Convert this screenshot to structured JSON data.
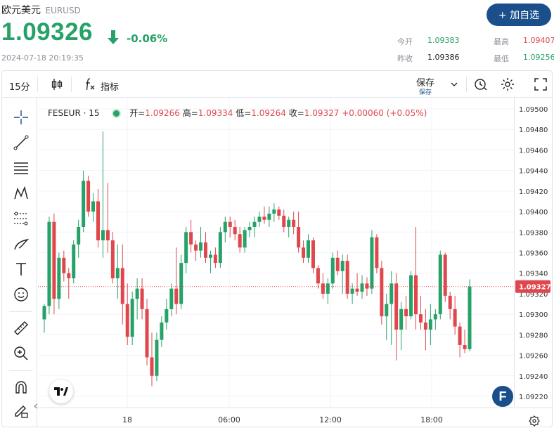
{
  "header": {
    "name": "欧元美元",
    "symbol": "EURUSD",
    "price": "1.09326",
    "change": "-0.06%",
    "timestamp": "2024-07-18 20:19:35",
    "add_button": "+ 加自选"
  },
  "quote": {
    "open_label": "今开",
    "open": "1.09383",
    "high_label": "最高",
    "high": "1.09407",
    "prev_label": "昨收",
    "prev": "1.09386",
    "low_label": "最低",
    "low": "1.09256"
  },
  "toolbar": {
    "interval": "15分",
    "indicators": "指标",
    "save": "保存",
    "save_sub": "保存"
  },
  "legend": {
    "symbol": "FESEUR · 15",
    "open_label": "开=",
    "open": "1.09266",
    "high_label": "高=",
    "high": "1.09334",
    "low_label": "低=",
    "low": "1.09264",
    "close_label": "收=",
    "close": "1.09327",
    "change": "+0.00060 (+0.05%)"
  },
  "colors": {
    "up": "#26a269",
    "down": "#e0474c",
    "accent": "#1a4f8b"
  },
  "left_tools": [
    "crosshair-icon",
    "trend-line-icon",
    "horizontal-lines-icon",
    "pattern-icon",
    "fib-icon",
    "brush-icon",
    "text-icon",
    "emoji-icon",
    "ruler-icon",
    "zoom-in-icon",
    "magnet-icon",
    "lock-pencil-icon"
  ],
  "chart_data": {
    "type": "candlestick",
    "ylim": [
      1.09212,
      1.0951
    ],
    "yticks": [
      "1.09500",
      "1.09480",
      "1.09460",
      "1.09440",
      "1.09420",
      "1.09400",
      "1.09380",
      "1.09360",
      "1.09340",
      "1.09320",
      "1.09300",
      "1.09280",
      "1.09260",
      "1.09240",
      "1.09220"
    ],
    "xticks": [
      "18",
      "06:00",
      "12:00",
      "18:00"
    ],
    "last_price": "1.09327",
    "candles": [
      [
        1.09295,
        1.0931,
        1.09282,
        1.09308
      ],
      [
        1.09308,
        1.09395,
        1.093,
        1.0939
      ],
      [
        1.0939,
        1.09398,
        1.093,
        1.09315
      ],
      [
        1.09315,
        1.0936,
        1.09305,
        1.09355
      ],
      [
        1.09355,
        1.09362,
        1.09332,
        1.0934
      ],
      [
        1.0934,
        1.09345,
        1.09315,
        1.09335
      ],
      [
        1.09335,
        1.09372,
        1.0933,
        1.09368
      ],
      [
        1.09368,
        1.09392,
        1.09355,
        1.09385
      ],
      [
        1.09385,
        1.0944,
        1.0938,
        1.0943
      ],
      [
        1.0943,
        1.09435,
        1.09395,
        1.094
      ],
      [
        1.094,
        1.09418,
        1.0939,
        1.0941
      ],
      [
        1.0941,
        1.09422,
        1.09365,
        1.09372
      ],
      [
        1.09372,
        1.09478,
        1.09355,
        1.09382
      ],
      [
        1.09382,
        1.09428,
        1.0936,
        1.09372
      ],
      [
        1.09372,
        1.0938,
        1.0933,
        1.09335
      ],
      [
        1.09335,
        1.09368,
        1.09315,
        1.09345
      ],
      [
        1.09345,
        1.09368,
        1.0929,
        1.0931
      ],
      [
        1.0931,
        1.0933,
        1.0927,
        1.09278
      ],
      [
        1.09278,
        1.09322,
        1.0927,
        1.09315
      ],
      [
        1.09315,
        1.09335,
        1.09295,
        1.09325
      ],
      [
        1.09325,
        1.09335,
        1.09295,
        1.09305
      ],
      [
        1.09305,
        1.09315,
        1.0925,
        1.09258
      ],
      [
        1.09258,
        1.09282,
        1.0923,
        1.0924
      ],
      [
        1.0924,
        1.09282,
        1.09235,
        1.09275
      ],
      [
        1.09275,
        1.09298,
        1.09268,
        1.09292
      ],
      [
        1.09292,
        1.09315,
        1.09285,
        1.09305
      ],
      [
        1.09305,
        1.0933,
        1.09298,
        1.09325
      ],
      [
        1.09325,
        1.09365,
        1.093,
        1.0931
      ],
      [
        1.0931,
        1.09358,
        1.09305,
        1.0935
      ],
      [
        1.0935,
        1.09385,
        1.0934,
        1.0938
      ],
      [
        1.0938,
        1.09392,
        1.0936,
        1.09368
      ],
      [
        1.09368,
        1.09372,
        1.09352,
        1.09362
      ],
      [
        1.09362,
        1.09385,
        1.09355,
        1.0937
      ],
      [
        1.0937,
        1.0938,
        1.0935,
        1.09355
      ],
      [
        1.09355,
        1.09362,
        1.0934,
        1.09358
      ],
      [
        1.09358,
        1.09365,
        1.09345,
        1.0935
      ],
      [
        1.0935,
        1.09385,
        1.09345,
        1.0938
      ],
      [
        1.0938,
        1.09395,
        1.0937,
        1.0939
      ],
      [
        1.0939,
        1.09395,
        1.09375,
        1.09385
      ],
      [
        1.09385,
        1.09392,
        1.09372,
        1.09378
      ],
      [
        1.09378,
        1.09385,
        1.0936,
        1.09365
      ],
      [
        1.09365,
        1.09385,
        1.0936,
        1.09382
      ],
      [
        1.09382,
        1.0939,
        1.09375,
        1.09385
      ],
      [
        1.09385,
        1.09395,
        1.09375,
        1.0939
      ],
      [
        1.0939,
        1.094,
        1.09385,
        1.09395
      ],
      [
        1.09395,
        1.09405,
        1.09388,
        1.09392
      ],
      [
        1.09392,
        1.09405,
        1.09385,
        1.09398
      ],
      [
        1.09398,
        1.09408,
        1.0939,
        1.09402
      ],
      [
        1.09402,
        1.09405,
        1.09392,
        1.09396
      ],
      [
        1.09396,
        1.09402,
        1.0938,
        1.09385
      ],
      [
        1.09385,
        1.09395,
        1.09375,
        1.09392
      ],
      [
        1.09392,
        1.094,
        1.09378,
        1.09385
      ],
      [
        1.09385,
        1.094,
        1.0936,
        1.09365
      ],
      [
        1.09365,
        1.09372,
        1.0935,
        1.09355
      ],
      [
        1.09355,
        1.09378,
        1.0935,
        1.09372
      ],
      [
        1.09372,
        1.09375,
        1.0934,
        1.09345
      ],
      [
        1.09345,
        1.09348,
        1.09325,
        1.0933
      ],
      [
        1.0933,
        1.0934,
        1.09315,
        1.0932
      ],
      [
        1.0932,
        1.09335,
        1.0931,
        1.0933
      ],
      [
        1.0933,
        1.0936,
        1.09325,
        1.09355
      ],
      [
        1.09355,
        1.09362,
        1.09338,
        1.09342
      ],
      [
        1.09342,
        1.09358,
        1.0932,
        1.09352
      ],
      [
        1.09352,
        1.09358,
        1.09315,
        1.0932
      ],
      [
        1.0932,
        1.0933,
        1.0931,
        1.09325
      ],
      [
        1.09325,
        1.0934,
        1.09318,
        1.09322
      ],
      [
        1.09322,
        1.09338,
        1.09315,
        1.0933
      ],
      [
        1.0933,
        1.09336,
        1.09318,
        1.09325
      ],
      [
        1.09325,
        1.09382,
        1.0932,
        1.09375
      ],
      [
        1.09375,
        1.09378,
        1.0934,
        1.09345
      ],
      [
        1.09345,
        1.09352,
        1.0929,
        1.09298
      ],
      [
        1.09298,
        1.0932,
        1.09275,
        1.0931
      ],
      [
        1.0931,
        1.09342,
        1.0927,
        1.0933
      ],
      [
        1.0933,
        1.0934,
        1.09255,
        1.09285
      ],
      [
        1.09285,
        1.09312,
        1.09265,
        1.09305
      ],
      [
        1.09305,
        1.09318,
        1.09285,
        1.09298
      ],
      [
        1.09298,
        1.09342,
        1.09295,
        1.09338
      ],
      [
        1.09338,
        1.09385,
        1.09285,
        1.093
      ],
      [
        1.093,
        1.09318,
        1.09285,
        1.09292
      ],
      [
        1.09292,
        1.09305,
        1.09265,
        1.09285
      ],
      [
        1.09285,
        1.0931,
        1.0927,
        1.09295
      ],
      [
        1.09295,
        1.09305,
        1.09285,
        1.093
      ],
      [
        1.093,
        1.09362,
        1.09295,
        1.09358
      ],
      [
        1.09358,
        1.0936,
        1.09312,
        1.09318
      ],
      [
        1.09318,
        1.09322,
        1.09295,
        1.09305
      ],
      [
        1.09305,
        1.09318,
        1.0928,
        1.09288
      ],
      [
        1.09288,
        1.09292,
        1.09258,
        1.0927
      ],
      [
        1.0927,
        1.09285,
        1.09262,
        1.09266
      ],
      [
        1.09266,
        1.09334,
        1.09264,
        1.09327
      ]
    ]
  }
}
